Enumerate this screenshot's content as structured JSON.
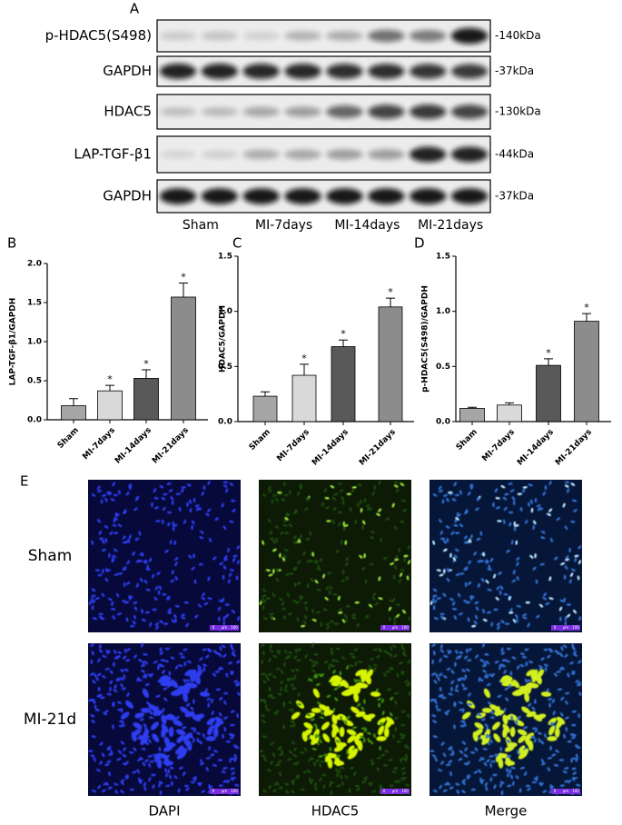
{
  "blot": {
    "panel": "A",
    "rows": [
      {
        "label": "p-HDAC5(S498)",
        "size": "-140kDa"
      },
      {
        "label": "GAPDH",
        "size": "-37kDa"
      },
      {
        "label": "HDAC5",
        "size": "-130kDa"
      },
      {
        "label": "LAP-TGF-β1",
        "size": "-44kDa"
      },
      {
        "label": "GAPDH",
        "size": "-37kDa"
      }
    ],
    "groups": [
      "Sham",
      "MI-7days",
      "MI-14days",
      "MI-21days"
    ]
  },
  "chart_data": [
    {
      "panel": "B",
      "type": "bar",
      "y_label": "LAP-TGF-β1/GAPDH",
      "categories": [
        "Sham",
        "MI-7days",
        "MI-14days",
        "MI-21days"
      ],
      "values": [
        0.18,
        0.37,
        0.53,
        1.57
      ],
      "errors": [
        0.09,
        0.07,
        0.11,
        0.18
      ],
      "annotations": [
        null,
        "*",
        "*",
        "*"
      ],
      "colors": [
        "#a6a6a6",
        "#d9d9d9",
        "#595959",
        "#8c8c8c"
      ],
      "ylim": [
        0,
        2
      ],
      "yticks": [
        {
          "value": 0,
          "label": "0.0"
        },
        0.5,
        {
          "value": 1,
          "label": "1.0"
        },
        1.5,
        {
          "value": 2,
          "label": "2.0"
        }
      ]
    },
    {
      "panel": "C",
      "type": "bar",
      "y_label": "HDAC5/GAPDH",
      "categories": [
        "Sham",
        "MI-7days",
        "MI-14days",
        "MI-21days"
      ],
      "values": [
        0.23,
        0.42,
        0.68,
        1.04
      ],
      "errors": [
        0.04,
        0.1,
        0.06,
        0.08
      ],
      "annotations": [
        null,
        "*",
        "*",
        "*"
      ],
      "colors": [
        "#a6a6a6",
        "#d9d9d9",
        "#595959",
        "#8c8c8c"
      ],
      "ylim": [
        0,
        1.5
      ],
      "yticks": [
        {
          "value": 0,
          "label": "0.0"
        },
        0.5,
        {
          "value": 1,
          "label": "1.0"
        },
        1.5
      ]
    },
    {
      "panel": "D",
      "type": "bar",
      "y_label": "p-HDAC5(S498)/GAPDH",
      "categories": [
        "Sham",
        "MI-7days",
        "MI-14days",
        "MI-21days"
      ],
      "values": [
        0.12,
        0.15,
        0.51,
        0.91
      ],
      "errors": [
        0.01,
        0.02,
        0.06,
        0.07
      ],
      "annotations": [
        null,
        null,
        "*",
        "*"
      ],
      "colors": [
        "#a6a6a6",
        "#d9d9d9",
        "#595959",
        "#8c8c8c"
      ],
      "ylim": [
        0,
        1.5
      ],
      "yticks": [
        {
          "value": 0,
          "label": "0.0"
        },
        0.5,
        {
          "value": 1,
          "label": "1.0"
        },
        1.5
      ]
    }
  ],
  "microscopy": {
    "panel": "E",
    "rows": [
      "Sham",
      "MI-21d"
    ],
    "columns": [
      "DAPI",
      "HDAC5",
      "Merge"
    ],
    "scale_bar": [
      "0",
      "μm",
      "100"
    ]
  }
}
